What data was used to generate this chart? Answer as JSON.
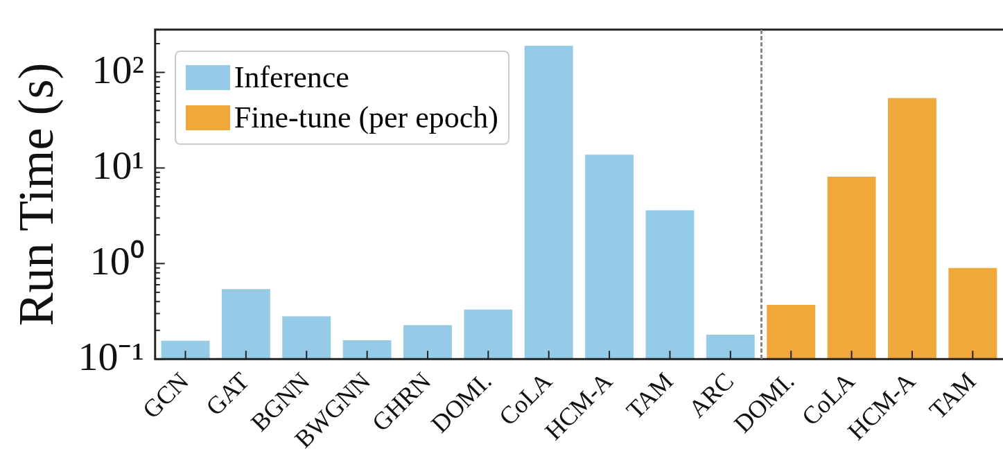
{
  "chart_data": {
    "type": "bar",
    "ylabel": "Run Time (s)",
    "log": true,
    "grid": false,
    "legend": "top left",
    "categories": [
      "GCN",
      "GAT",
      "BGNN",
      "BWGNN",
      "GHRN",
      "DOMI.",
      "CoLA",
      "HCM-A",
      "TAM",
      "ARC",
      "DOMI.",
      "CoLA",
      "HCM-A",
      "TAM"
    ],
    "series": [
      {
        "name": "Inference",
        "color": "#95cbe6",
        "values": [
          0.156,
          0.54,
          0.28,
          0.158,
          0.227,
          0.33,
          190,
          13.8,
          3.6,
          0.18,
          null,
          null,
          null,
          null
        ]
      },
      {
        "name": "Fine-tune (per epoch)",
        "color": "#f0a83a",
        "values": [
          null,
          null,
          null,
          null,
          null,
          null,
          null,
          null,
          null,
          null,
          0.37,
          8.1,
          54,
          0.9
        ]
      }
    ],
    "ylim": [
      0.1,
      280
    ],
    "yticks": [
      {
        "value": 0.1,
        "label": "10⁻¹"
      },
      {
        "value": 1,
        "label": "10⁰"
      },
      {
        "value": 10,
        "label": "10¹"
      },
      {
        "value": 100,
        "label": "10²"
      }
    ]
  }
}
